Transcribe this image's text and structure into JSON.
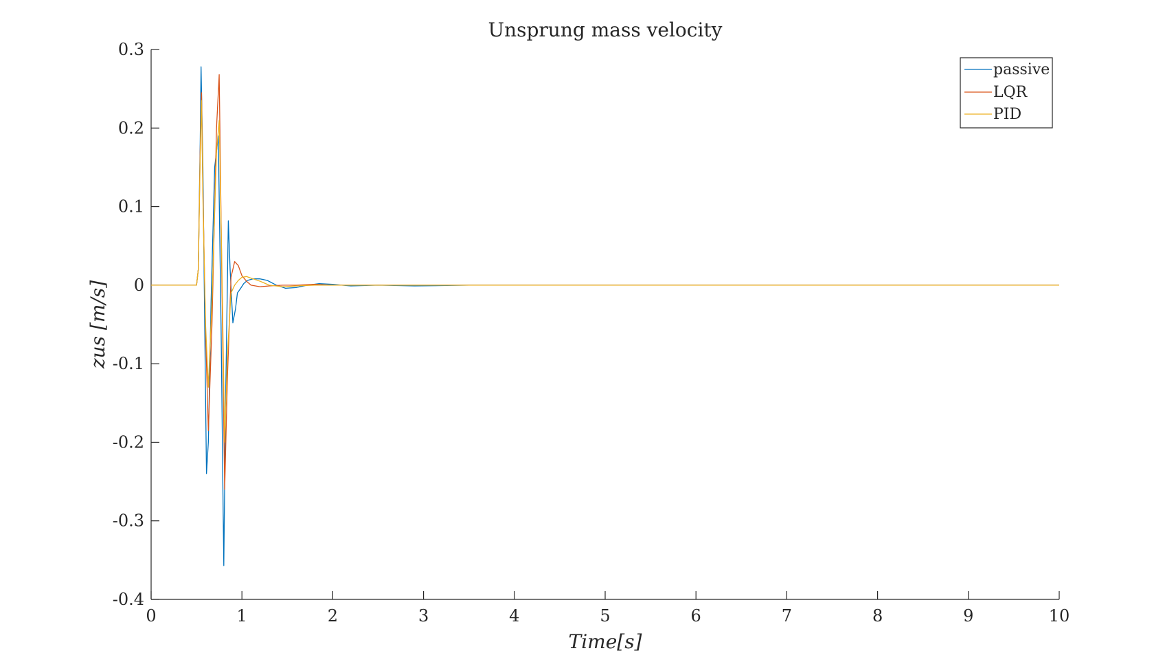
{
  "chart_data": {
    "type": "line",
    "title": "Unsprung mass velocity",
    "xlabel": "Time[s]",
    "ylabel": "zus [m/s]",
    "xlim": [
      0,
      10
    ],
    "ylim": [
      -0.4,
      0.3
    ],
    "xticks": [
      "0",
      "1",
      "2",
      "3",
      "4",
      "5",
      "6",
      "7",
      "8",
      "9",
      "10"
    ],
    "yticks": [
      "0.3",
      "0.2",
      "0.1",
      "0",
      "-0.1",
      "-0.2",
      "-0.3",
      "-0.4"
    ],
    "grid": false,
    "legend_position": "top-right",
    "series": [
      {
        "name": "passive",
        "color": "#0072bd",
        "x": [
          0,
          0.5,
          0.52,
          0.54,
          0.55,
          0.57,
          0.59,
          0.61,
          0.63,
          0.66,
          0.7,
          0.74,
          0.77,
          0.8,
          0.82,
          0.85,
          0.87,
          0.9,
          0.93,
          0.95,
          0.98,
          1.02,
          1.06,
          1.12,
          1.2,
          1.28,
          1.38,
          1.48,
          1.6,
          1.72,
          1.85,
          2.0,
          2.2,
          2.5,
          2.9,
          3.5,
          10
        ],
        "y": [
          0,
          0,
          0.02,
          0.18,
          0.278,
          0.15,
          -0.05,
          -0.24,
          -0.2,
          -0.02,
          0.15,
          0.19,
          -0.05,
          -0.357,
          -0.15,
          0.082,
          0.02,
          -0.048,
          -0.03,
          -0.01,
          -0.005,
          0.002,
          0.006,
          0.008,
          0.008,
          0.006,
          0.0,
          -0.004,
          -0.003,
          0.0,
          0.002,
          0.001,
          -0.001,
          0.0,
          -0.001,
          0.0,
          0
        ]
      },
      {
        "name": "LQR",
        "color": "#d95319",
        "x": [
          0,
          0.5,
          0.52,
          0.54,
          0.555,
          0.57,
          0.6,
          0.63,
          0.67,
          0.72,
          0.75,
          0.78,
          0.81,
          0.84,
          0.88,
          0.92,
          0.96,
          1.0,
          1.05,
          1.1,
          1.2,
          1.3,
          1.45,
          1.6,
          1.8,
          2.0,
          2.3,
          10
        ],
        "y": [
          0,
          0,
          0.02,
          0.17,
          0.245,
          0.12,
          -0.06,
          -0.185,
          -0.05,
          0.2,
          0.268,
          0.0,
          -0.26,
          -0.12,
          0.01,
          0.03,
          0.025,
          0.012,
          0.005,
          0.0,
          -0.002,
          -0.001,
          0.0,
          0.0,
          0.001,
          0.0,
          0.0,
          0
        ]
      },
      {
        "name": "PID",
        "color": "#edb120",
        "x": [
          0,
          0.5,
          0.52,
          0.54,
          0.555,
          0.57,
          0.6,
          0.63,
          0.67,
          0.72,
          0.75,
          0.78,
          0.81,
          0.84,
          0.88,
          0.92,
          0.96,
          1.0,
          1.05,
          1.1,
          1.2,
          1.3,
          1.45,
          1.6,
          1.8,
          2.0,
          2.3,
          10
        ],
        "y": [
          0,
          0,
          0.02,
          0.16,
          0.235,
          0.11,
          -0.05,
          -0.13,
          -0.02,
          0.17,
          0.21,
          0.02,
          -0.2,
          -0.09,
          -0.01,
          0.0,
          0.006,
          0.01,
          0.011,
          0.009,
          0.005,
          0.0,
          -0.002,
          -0.001,
          0.0,
          0.0,
          0.0,
          0
        ]
      }
    ]
  }
}
